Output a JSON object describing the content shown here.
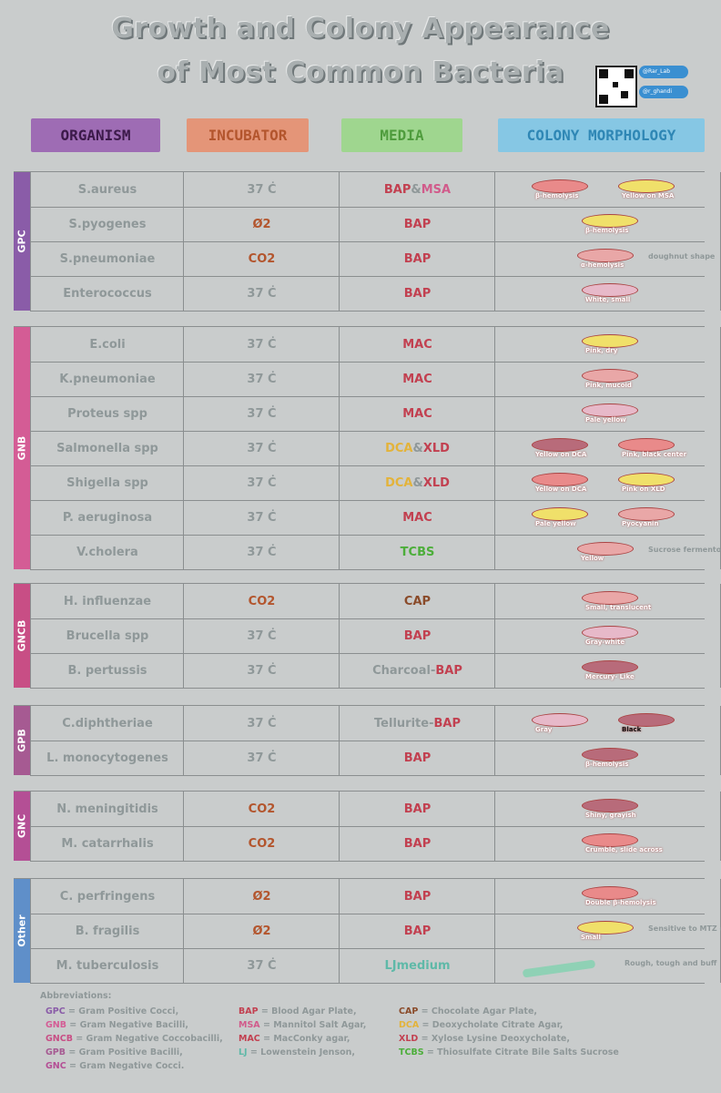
{
  "title": {
    "line1": "Growth and Colony Appearance",
    "line2": "of Most Common Bacteria"
  },
  "social": {
    "telegram": "@Rar_Lab",
    "twitter": "@r_ghandi"
  },
  "headers": {
    "organism": "ORGANISM",
    "incubator": "INCUBATOR",
    "media": "MEDIA",
    "colony": "COLONY MORPHOLOGY"
  },
  "groups": [
    {
      "name": "GPC",
      "color": "#8a5ca8",
      "rows": [
        {
          "organism": "S.aureus",
          "incubator": "37 Ċ",
          "media": "BAP & MSA",
          "labels": [
            "β-hemolysis",
            "Yellow on MSA"
          ],
          "side": ""
        },
        {
          "organism": "S.pyogenes",
          "incubator": "Ø2",
          "media": "BAP",
          "labels": [
            "β-hemolysis"
          ],
          "side": ""
        },
        {
          "organism": "S.pneumoniae",
          "incubator": "CO2",
          "media": "BAP",
          "labels": [
            "α-hemolysis"
          ],
          "side": "doughnut shape"
        },
        {
          "organism": "Enterococcus",
          "incubator": "37 Ċ",
          "media": "BAP",
          "labels": [
            "White, small"
          ],
          "side": ""
        }
      ]
    },
    {
      "name": "GNB",
      "color": "#d45c95",
      "rows": [
        {
          "organism": "E.coli",
          "incubator": "37 Ċ",
          "media": "MAC",
          "labels": [
            "Pink, dry"
          ],
          "side": ""
        },
        {
          "organism": "K.pneumoniae",
          "incubator": "37 Ċ",
          "media": "MAC",
          "labels": [
            "Pink, mucoid"
          ],
          "side": ""
        },
        {
          "organism": "Proteus spp",
          "incubator": "37 Ċ",
          "media": "MAC",
          "labels": [
            "Pale yellow"
          ],
          "side": ""
        },
        {
          "organism": "Salmonella spp",
          "incubator": "37 Ċ",
          "media": "DCA & XLD",
          "labels": [
            "Yellow on DCA",
            "Pink, black center"
          ],
          "side": ""
        },
        {
          "organism": "Shigella spp",
          "incubator": "37 Ċ",
          "media": "DCA & XLD",
          "labels": [
            "Yellow on DCA",
            "Pink on XLD"
          ],
          "side": ""
        },
        {
          "organism": "P. aeruginosa",
          "incubator": "37 Ċ",
          "media": "MAC",
          "labels": [
            "Pale yellow",
            "Pyocyanin"
          ],
          "side": ""
        },
        {
          "organism": "V.cholera",
          "incubator": "37 Ċ",
          "media": "TCBS",
          "labels": [
            "Yellow"
          ],
          "side": "Sucrose fermentor"
        }
      ]
    },
    {
      "name": "GNCB",
      "color": "#c84e85",
      "rows": [
        {
          "organism": "H. influenzae",
          "incubator": "CO2",
          "media": "CAP",
          "labels": [
            "Small, translucent"
          ],
          "side": ""
        },
        {
          "organism": "Brucella spp",
          "incubator": "37 Ċ",
          "media": "BAP",
          "labels": [
            "Gray-white"
          ],
          "side": ""
        },
        {
          "organism": "B. pertussis",
          "incubator": "37 Ċ",
          "media": "Charcoal- BAP",
          "labels": [
            "Mercury- Like"
          ],
          "side": ""
        }
      ]
    },
    {
      "name": "GPB",
      "color": "#a65a92",
      "rows": [
        {
          "organism": "C.diphtheriae",
          "incubator": "37 Ċ",
          "media": "Tellurite- BAP",
          "labels": [
            "Gray",
            "Black"
          ],
          "side": ""
        },
        {
          "organism": "L. monocytogenes",
          "incubator": "37 Ċ",
          "media": "BAP",
          "labels": [
            "β-hemolysis"
          ],
          "side": ""
        }
      ]
    },
    {
      "name": "GNC",
      "color": "#b44f95",
      "rows": [
        {
          "organism": "N. meningitidis",
          "incubator": "CO2",
          "media": "BAP",
          "labels": [
            "Shiny, grayish"
          ],
          "side": ""
        },
        {
          "organism": "M. catarrhalis",
          "incubator": "CO2",
          "media": "BAP",
          "labels": [
            "Crumble, slide across"
          ],
          "side": ""
        }
      ]
    },
    {
      "name": "Other",
      "color": "#5f8fc9",
      "rows": [
        {
          "organism": "C. perfringens",
          "incubator": "Ø2",
          "media": "BAP",
          "labels": [
            "Double β-hemolysis"
          ],
          "side": ""
        },
        {
          "organism": "B. fragilis",
          "incubator": "Ø2",
          "media": "BAP",
          "labels": [
            "Small"
          ],
          "side": "Sensitive to MTZ disc"
        },
        {
          "organism": "M. tuberculosis",
          "incubator": "37 Ċ",
          "media": "LJ medium",
          "labels": [],
          "side": "Rough, tough and buff"
        }
      ]
    }
  ],
  "abbreviations": {
    "heading": "Abbreviations:",
    "col1": [
      "GPC = Gram Positive Cocci,",
      "GNB = Gram Negative Bacilli,",
      "GNCB = Gram Negative Coccobacilli,",
      "GPB = Gram Positive Bacilli,",
      "GNC = Gram Negative Cocci."
    ],
    "col2": [
      "BAP = Blood Agar Plate,",
      "MSA = Mannitol Salt Agar,",
      "MAC = MacConky agar,",
      "LJ = Lowenstein Jenson,"
    ],
    "col3": [
      "CAP = Chocolate Agar Plate,",
      "DCA = Deoxycholate Citrate Agar,",
      "XLD = Xylose Lysine Deoxycholate,",
      "TCBS = Thiosulfate Citrate Bile Salts Sucrose"
    ]
  }
}
